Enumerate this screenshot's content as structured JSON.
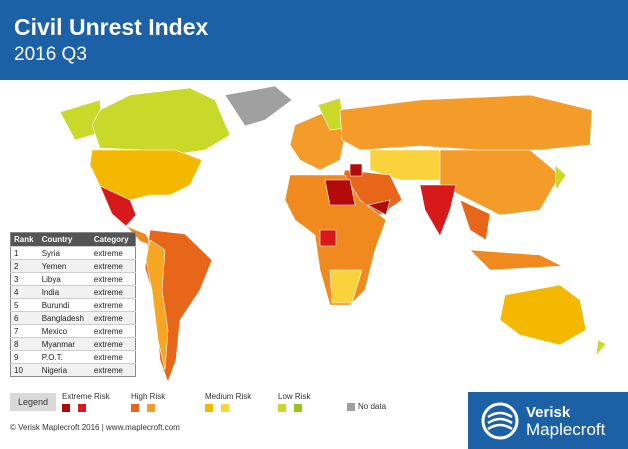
{
  "header": {
    "title": "Civil Unrest Index",
    "subtitle": "2016 Q3"
  },
  "table": {
    "columns": [
      "Rank",
      "Country",
      "Category"
    ],
    "rows": [
      [
        1,
        "Syria",
        "extreme"
      ],
      [
        2,
        "Yemen",
        "extreme"
      ],
      [
        3,
        "Libya",
        "extreme"
      ],
      [
        4,
        "India",
        "extreme"
      ],
      [
        5,
        "Burundi",
        "extreme"
      ],
      [
        6,
        "Bangladesh",
        "extreme"
      ],
      [
        7,
        "Mexico",
        "extreme"
      ],
      [
        8,
        "Myanmar",
        "extreme"
      ],
      [
        9,
        "P.O.T.",
        "extreme"
      ],
      [
        10,
        "Nigeria",
        "extreme"
      ]
    ]
  },
  "legend": {
    "title": "Legend",
    "items": [
      "Extreme Risk",
      "High Risk",
      "Medium Risk",
      "Low Risk",
      "No data"
    ]
  },
  "footer": {
    "copyright": "© Verisk Maplecroft 2016 | www.maplecroft.com",
    "logo": [
      "Verisk",
      "Maplecroft"
    ]
  }
}
